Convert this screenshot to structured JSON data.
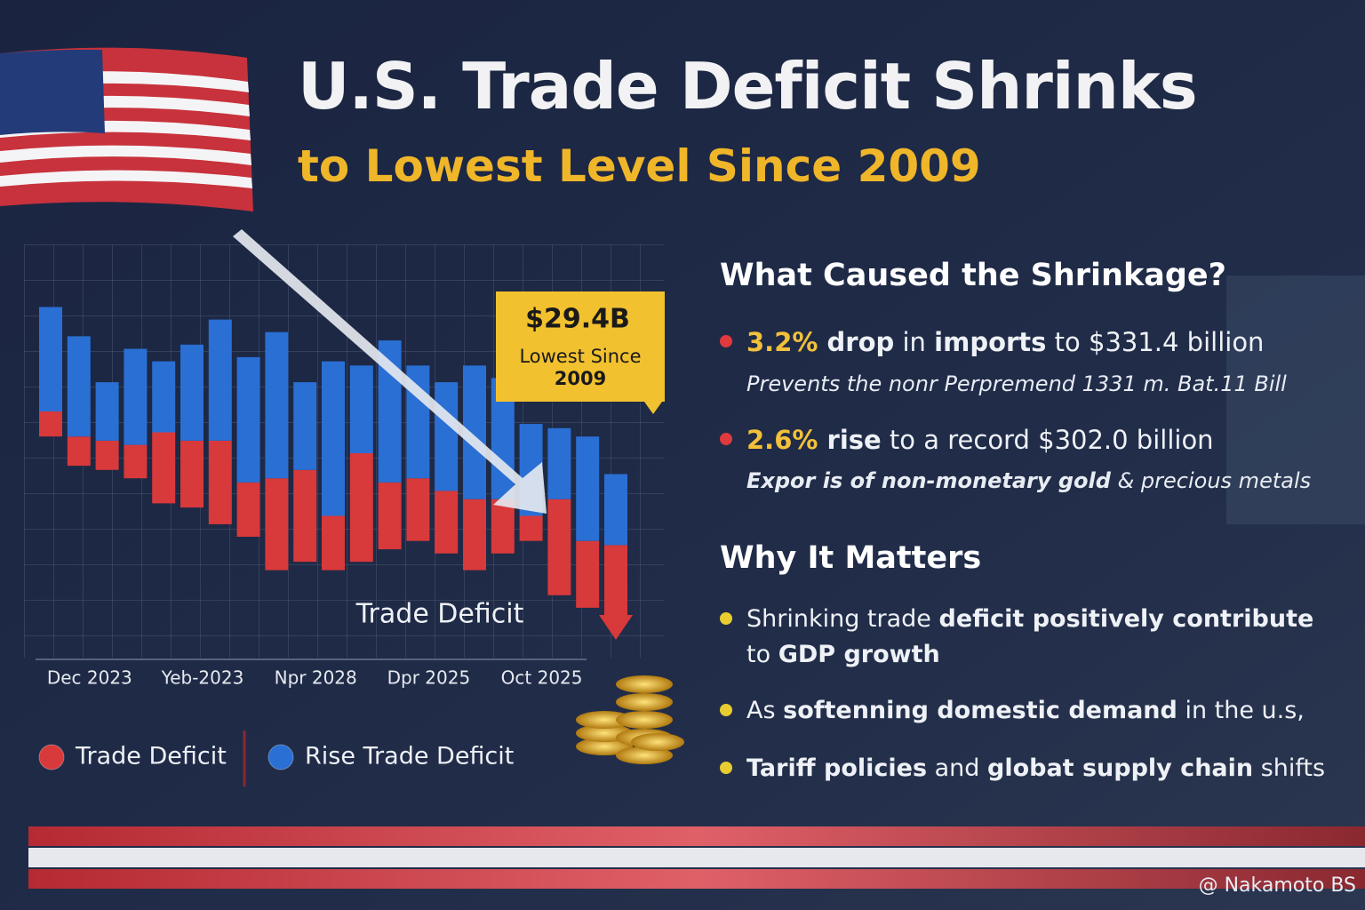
{
  "header": {
    "title": "U.S. Trade Deficit Shrinks",
    "subtitle": "to Lowest Level Since 2009"
  },
  "chart_data": {
    "type": "bar",
    "categories": [
      null,
      "Dec 2023",
      null,
      null,
      null,
      "Yeb-2023",
      null,
      null,
      null,
      "Npr 2028",
      null,
      null,
      null,
      "Dpr 2025",
      null,
      null,
      null,
      "Oct 2025",
      null,
      null,
      null
    ],
    "series": [
      {
        "name": "Trade Deficit",
        "color": "#d8393a",
        "values": [
          [
            54,
            60
          ],
          [
            47,
            54
          ],
          [
            46,
            53
          ],
          [
            44,
            52
          ],
          [
            38,
            55
          ],
          [
            37,
            53
          ],
          [
            33,
            53
          ],
          [
            30,
            43
          ],
          [
            22,
            44
          ],
          [
            24,
            46
          ],
          [
            22,
            35
          ],
          [
            24,
            50
          ],
          [
            27,
            43
          ],
          [
            29,
            44
          ],
          [
            26,
            41
          ],
          [
            22,
            39
          ],
          [
            26,
            39
          ],
          [
            29,
            35
          ],
          [
            16,
            39
          ],
          [
            13,
            29
          ],
          [
            10,
            28
          ]
        ]
      },
      {
        "name": "Rise Trade Deficit",
        "color": "#2a6fd4",
        "values": [
          [
            60,
            85
          ],
          [
            54,
            78
          ],
          [
            53,
            67
          ],
          [
            52,
            75
          ],
          [
            55,
            72
          ],
          [
            53,
            76
          ],
          [
            53,
            82
          ],
          [
            43,
            73
          ],
          [
            44,
            79
          ],
          [
            46,
            67
          ],
          [
            35,
            72
          ],
          [
            50,
            71
          ],
          [
            43,
            77
          ],
          [
            44,
            71
          ],
          [
            41,
            67
          ],
          [
            39,
            71
          ],
          [
            39,
            68
          ],
          [
            35,
            57
          ],
          [
            39,
            56
          ],
          [
            29,
            54
          ],
          [
            28,
            45
          ]
        ]
      }
    ],
    "ylim": [
      0,
      100
    ],
    "grid": true,
    "annotations": {
      "callout_value": "$29.4B",
      "callout_lines": [
        "Lowest Since",
        "2009"
      ],
      "label": "Trade Deficit"
    }
  },
  "panel": {
    "causes_heading": "What Caused the Shrinkage?",
    "causes": [
      {
        "runs": [
          {
            "text": "3.2%",
            "style": "accent"
          },
          {
            "text": " drop",
            "style": "bold"
          },
          {
            "text": " in ",
            "style": "plain"
          },
          {
            "text": "imports",
            "style": "bold"
          },
          {
            "text": " to $331.4 billion",
            "style": "plain"
          }
        ],
        "note": [
          {
            "text": "Prevents the nonr Perpremend 1331 m. Bat.11 Bill",
            "style": "italic"
          }
        ]
      },
      {
        "runs": [
          {
            "text": "2.6%",
            "style": "accent"
          },
          {
            "text": " rise",
            "style": "bold"
          },
          {
            "text": " to a record $302.0 billion",
            "style": "plain"
          }
        ],
        "note": [
          {
            "text": "Expor is of ",
            "style": "bold-italic"
          },
          {
            "text": "non-monetary gold",
            "style": "bold-italic"
          },
          {
            "text": " & precious metals",
            "style": "italic"
          }
        ]
      }
    ],
    "matters_heading": "Why It Matters",
    "matters": [
      {
        "runs": [
          {
            "text": "Shrinking trade ",
            "style": "plain"
          },
          {
            "text": "deficit positively contribute",
            "style": "bold"
          },
          {
            "text": " to ",
            "style": "plain"
          },
          {
            "text": "GDP growth",
            "style": "bold"
          }
        ]
      },
      {
        "runs": [
          {
            "text": "As ",
            "style": "plain"
          },
          {
            "text": "softenning domestic demand",
            "style": "bold"
          },
          {
            "text": " in the u.s,",
            "style": "plain"
          }
        ]
      },
      {
        "runs": [
          {
            "text": "Tariff policies",
            "style": "bold"
          },
          {
            "text": " and ",
            "style": "plain"
          },
          {
            "text": "globat supply chain",
            "style": "bold"
          },
          {
            "text": " shifts",
            "style": "plain"
          }
        ]
      }
    ]
  },
  "footer": {
    "credit": "@ Nakamoto BS"
  }
}
